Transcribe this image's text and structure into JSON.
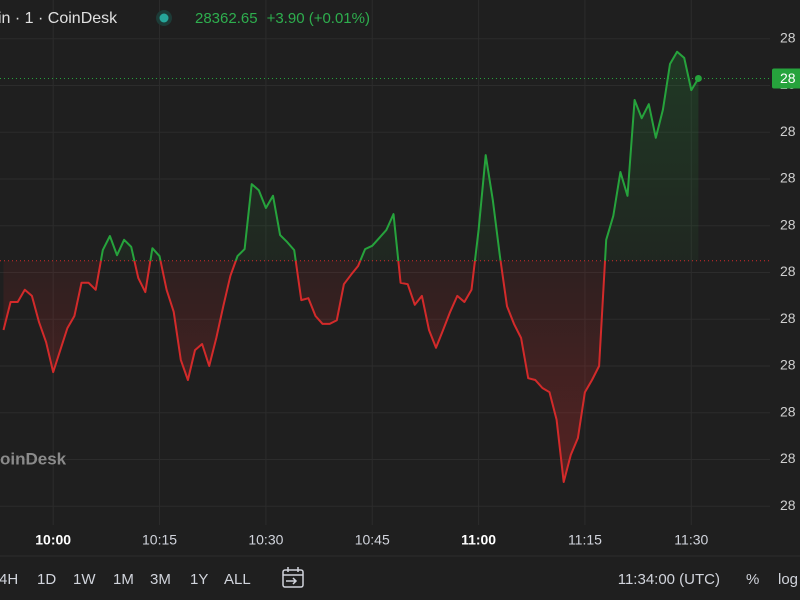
{
  "chart_data": {
    "type": "line",
    "title": "in · 1 · CoinDesk",
    "price": 28362.65,
    "change": "+3.90 (+0.01%)",
    "watermark": "oinDesk",
    "price_label": "28",
    "baseline": 28358.75,
    "color_up": "#26a33c",
    "color_down": "#d32a2a",
    "x": [
      593,
      594,
      595,
      596,
      597,
      598,
      599,
      600,
      601,
      602,
      603,
      604,
      605,
      606,
      607,
      608,
      609,
      610,
      611,
      612,
      613,
      614,
      615,
      616,
      617,
      618,
      619,
      620,
      621,
      622,
      623,
      624,
      625,
      626,
      627,
      628,
      629,
      630,
      631,
      632,
      633,
      634,
      635,
      636,
      637,
      638,
      639,
      640,
      641,
      642,
      643,
      644,
      645,
      646,
      647,
      648,
      649,
      650,
      651,
      652,
      653,
      654,
      655,
      656,
      657,
      658,
      659,
      660,
      661,
      662,
      663,
      664,
      665,
      666,
      667,
      668,
      669,
      670,
      671,
      672,
      673,
      674,
      675,
      676,
      677,
      678,
      679,
      680,
      681,
      682,
      683,
      684,
      685,
      686,
      687,
      688,
      689,
      690,
      691
    ],
    "values": [
      28357.27,
      28357.87,
      28357.87,
      28358.13,
      28358.0,
      28357.44,
      28357.01,
      28356.37,
      28356.84,
      28357.31,
      28357.57,
      28358.28,
      28358.28,
      28358.13,
      28358.98,
      28359.28,
      28358.87,
      28359.2,
      28359.05,
      28358.38,
      28358.08,
      28359.02,
      28358.85,
      28358.13,
      28357.66,
      28356.63,
      28356.2,
      28356.84,
      28356.97,
      28356.5,
      28357.1,
      28357.78,
      28358.43,
      28358.85,
      28359.0,
      28360.39,
      28360.26,
      28359.88,
      28360.14,
      28359.3,
      28359.15,
      28358.98,
      28357.91,
      28357.95,
      28357.57,
      28357.4,
      28357.4,
      28357.48,
      28358.25,
      28358.45,
      28358.64,
      28359.0,
      28359.07,
      28359.24,
      28359.41,
      28359.75,
      28358.28,
      28358.25,
      28357.81,
      28358.0,
      28357.27,
      28356.89,
      28357.27,
      28357.66,
      28358.0,
      28357.87,
      28358.13,
      28359.41,
      28361.01,
      28360.05,
      28358.85,
      28357.78,
      28357.4,
      28357.1,
      28356.24,
      28356.2,
      28356.03,
      28355.94,
      28355.35,
      28354.02,
      28354.6,
      28354.96,
      28355.94,
      28356.2,
      28356.5,
      28359.2,
      28359.71,
      28360.65,
      28360.14,
      28362.19,
      28361.8,
      28362.1,
      28361.38,
      28361.98,
      28362.96,
      28363.22,
      28363.09,
      28362.4,
      28362.65
    ],
    "xlim": [
      592.5,
      701.1
    ],
    "xticks": [
      {
        "value": 600,
        "label": "10:00"
      },
      {
        "value": 615,
        "label": "10:15"
      },
      {
        "value": 630,
        "label": "10:30"
      },
      {
        "value": 645,
        "label": "10:45"
      },
      {
        "value": 660,
        "label": "11:00"
      },
      {
        "value": 675,
        "label": "11:15"
      },
      {
        "value": 690,
        "label": "11:30"
      }
    ],
    "ylim": [
      28353.1,
      28363.9
    ],
    "yticks": [
      {
        "value": 28363.5,
        "label": "28"
      },
      {
        "value": 28362.5,
        "label": "28"
      },
      {
        "value": 28361.5,
        "label": "28"
      },
      {
        "value": 28360.5,
        "label": "28"
      },
      {
        "value": 28359.5,
        "label": "28"
      },
      {
        "value": 28358.5,
        "label": "28"
      },
      {
        "value": 28357.5,
        "label": "28"
      },
      {
        "value": 28356.5,
        "label": "28"
      },
      {
        "value": 28355.5,
        "label": "28"
      },
      {
        "value": 28354.5,
        "label": "28"
      },
      {
        "value": 28353.5,
        "label": "28"
      }
    ],
    "grid": true
  },
  "toolbar": {
    "ranges": [
      "4H",
      "1D",
      "1W",
      "1M",
      "3M",
      "1Y",
      "ALL"
    ],
    "clock": "11:34:00 (UTC)",
    "percent": "%",
    "log": "log"
  }
}
